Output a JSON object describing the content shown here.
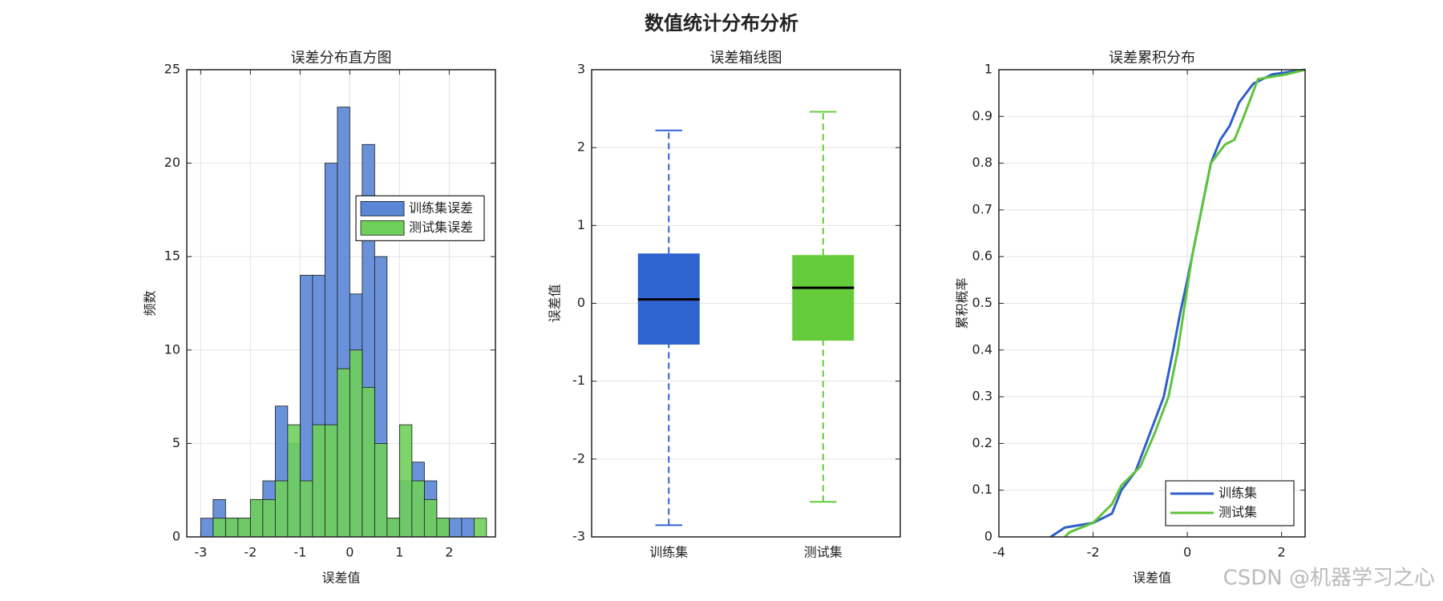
{
  "title": "数值统计分布分析",
  "watermark": "CSDN @机器学习之心",
  "chart_data": [
    {
      "type": "histogram",
      "title": "误差分布直方图",
      "xlabel": "误差值",
      "ylabel": "频数",
      "bins": [
        -3,
        -2.75,
        -2.5,
        -2.25,
        -2,
        -1.75,
        -1.5,
        -1.25,
        -1,
        -0.75,
        -0.5,
        -0.25,
        0,
        0.25,
        0.5,
        0.75,
        1,
        1.25,
        1.5,
        1.75,
        2,
        2.25,
        2.5,
        2.75
      ],
      "series": [
        {
          "name": "训练集误差",
          "color": "#5a86d6",
          "values": [
            1,
            2,
            1,
            1,
            2,
            3,
            7,
            5,
            14,
            14,
            20,
            23,
            13,
            21,
            15,
            1,
            3,
            4,
            3,
            1,
            1,
            1,
            0
          ]
        },
        {
          "name": "测试集误差",
          "color": "#6fd05c",
          "values": [
            0,
            1,
            1,
            1,
            2,
            2,
            3,
            6,
            3,
            6,
            6,
            9,
            10,
            8,
            5,
            1,
            6,
            3,
            2,
            1,
            0,
            0,
            1
          ]
        }
      ],
      "xlim": [
        -3.28,
        2.93
      ],
      "xticks": [
        -3,
        -2,
        -1,
        0,
        1,
        2
      ],
      "ylim": [
        0,
        25
      ],
      "yticks": [
        0,
        5,
        10,
        15,
        20,
        25
      ],
      "grid": true,
      "legend": "best"
    },
    {
      "type": "box",
      "title": "误差箱线图",
      "ylabel": "误差值",
      "categories": [
        "训练集",
        "测试集"
      ],
      "boxes": [
        {
          "color": "#2f63d0",
          "min": -2.85,
          "q1": -0.53,
          "median": 0.05,
          "q3": 0.64,
          "max": 2.22
        },
        {
          "color": "#64cc3a",
          "min": -2.55,
          "q1": -0.48,
          "median": 0.2,
          "q3": 0.62,
          "max": 2.46
        }
      ],
      "ylim": [
        -3,
        3
      ],
      "yticks": [
        -3,
        -2,
        -1,
        0,
        1,
        2,
        3
      ],
      "grid": true
    },
    {
      "type": "line",
      "title": "误差累积分布",
      "xlabel": "误差值",
      "ylabel": "累积概率",
      "series": [
        {
          "name": "训练集",
          "color": "#3060c8",
          "x": [
            -2.9,
            -2.6,
            -2,
            -1.6,
            -1.4,
            -1.1,
            -0.8,
            -0.5,
            -0.3,
            -0.15,
            0,
            0.1,
            0.3,
            0.5,
            0.7,
            0.9,
            1.1,
            1.4,
            1.8,
            2.5
          ],
          "values": [
            0,
            0.02,
            0.03,
            0.05,
            0.1,
            0.14,
            0.22,
            0.3,
            0.4,
            0.48,
            0.55,
            0.6,
            0.7,
            0.8,
            0.85,
            0.88,
            0.93,
            0.97,
            0.99,
            1
          ]
        },
        {
          "name": "测试集",
          "color": "#5ec43a",
          "x": [
            -2.6,
            -2.5,
            -2,
            -1.6,
            -1.4,
            -1,
            -0.7,
            -0.4,
            -0.2,
            -0.05,
            0.1,
            0.3,
            0.5,
            0.8,
            1,
            1.2,
            1.5,
            2.1,
            2.5
          ],
          "values": [
            0,
            0.01,
            0.03,
            0.07,
            0.11,
            0.15,
            0.22,
            0.3,
            0.4,
            0.5,
            0.6,
            0.7,
            0.8,
            0.84,
            0.85,
            0.9,
            0.98,
            0.99,
            1
          ]
        }
      ],
      "xlim": [
        -4,
        2.5
      ],
      "xticks": [
        -4,
        -2,
        0,
        2
      ],
      "ylim": [
        0,
        1
      ],
      "yticks": [
        0,
        0.1,
        0.2,
        0.3,
        0.4,
        0.5,
        0.6,
        0.7,
        0.8,
        0.9,
        1
      ],
      "grid": true,
      "legend": "southeast"
    }
  ]
}
